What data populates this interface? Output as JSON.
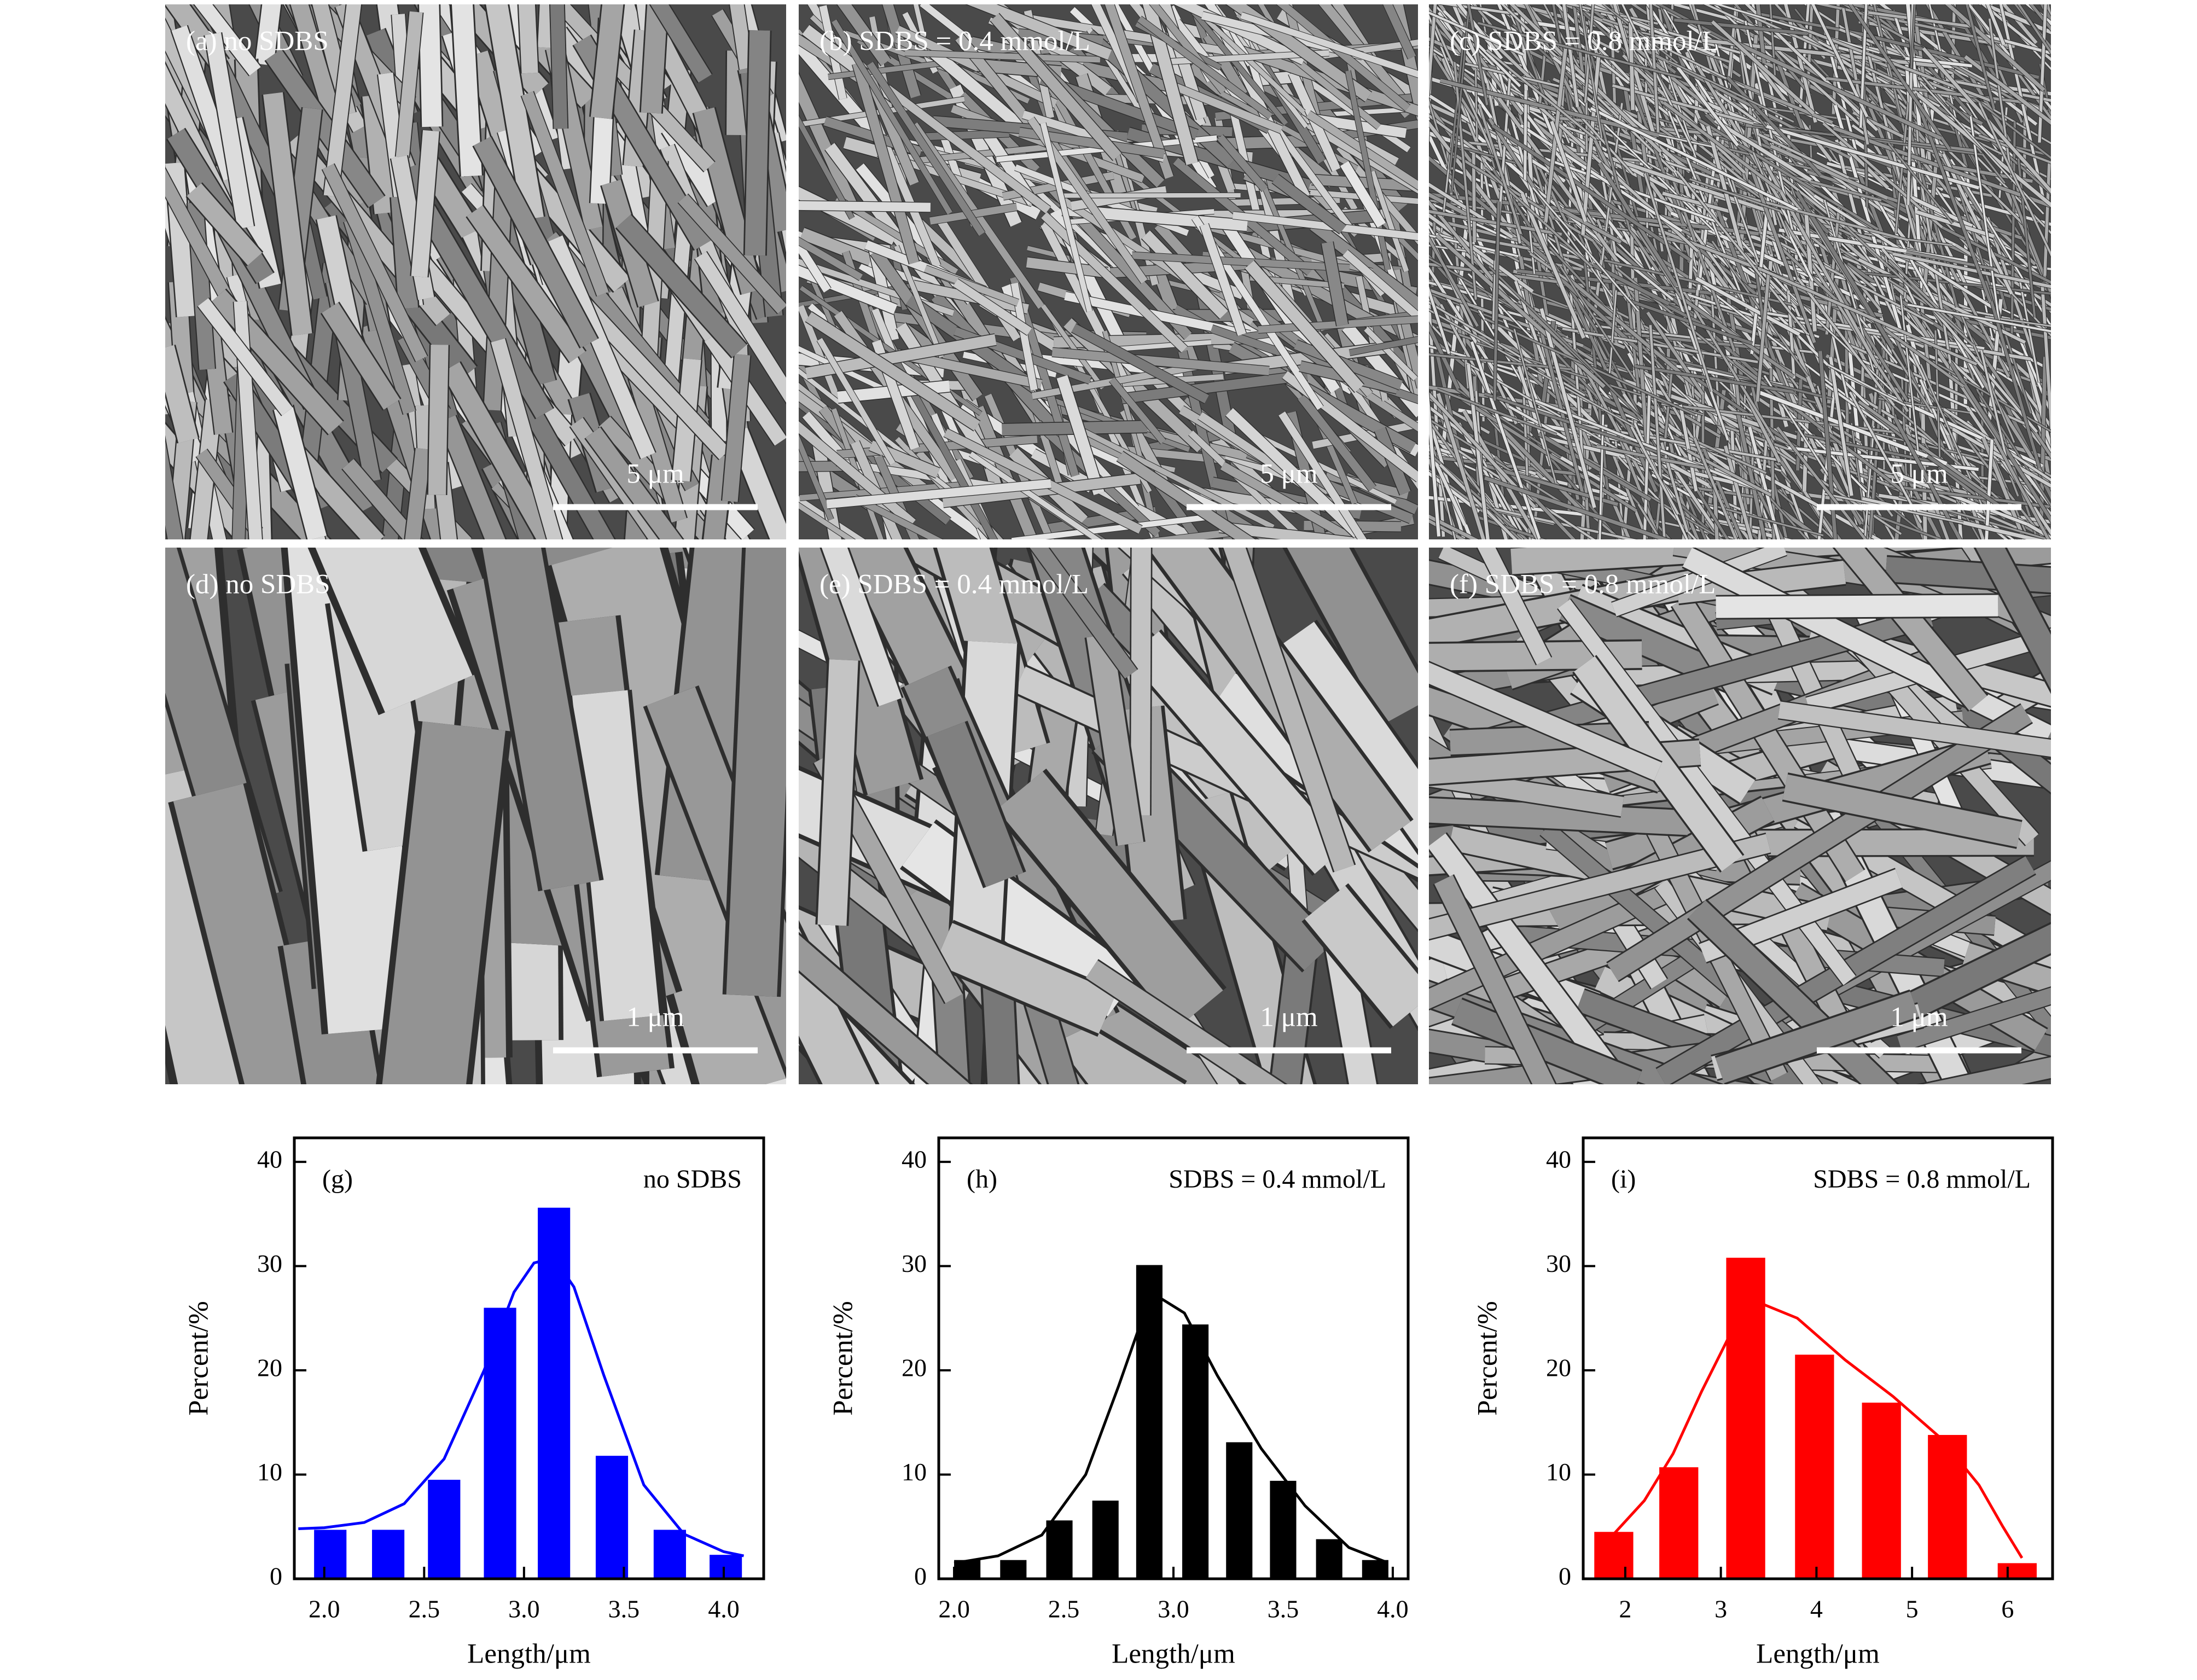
{
  "panels": [
    {
      "label": "(a)  no SDBS",
      "scale_bar": "5 μm"
    },
    {
      "label": "(b)  SDBS = 0.4 mmol/L",
      "scale_bar": "5 μm"
    },
    {
      "label": "(c)  SDBS = 0.8 mmol/L",
      "scale_bar": "5 μm"
    },
    {
      "label": "(d)  no SDBS",
      "scale_bar": "1 μm"
    },
    {
      "label": "(e)  SDBS = 0.4 mmol/L",
      "scale_bar": "1 μm"
    },
    {
      "label": "(f)  SDBS = 0.8 mmol/L",
      "scale_bar": "1 μm"
    }
  ],
  "chart_data": [
    {
      "type": "bar",
      "panel_label": "(g)",
      "annotation": "no SDBS",
      "color": "#0000ff",
      "xlabel": "Length/μm",
      "ylabel": "Percent/%",
      "x": [
        2.03,
        2.32,
        2.6,
        2.88,
        3.15,
        3.44,
        3.73,
        4.01
      ],
      "values": [
        4.7,
        4.7,
        9.5,
        26,
        35.6,
        11.8,
        4.7,
        2.3
      ],
      "line": {
        "x": [
          1.87,
          2.0,
          2.2,
          2.4,
          2.6,
          2.8,
          2.95,
          3.05,
          3.15,
          3.25,
          3.4,
          3.6,
          3.8,
          4.0,
          4.1
        ],
        "y": [
          4.8,
          4.9,
          5.4,
          7.2,
          11.5,
          20,
          27.5,
          30.3,
          30.8,
          28,
          19.5,
          9,
          4.3,
          2.6,
          2.2
        ]
      },
      "xlim": [
        1.85,
        4.2
      ],
      "ylim": [
        0,
        42.3
      ],
      "xticks": [
        {
          "value": 2,
          "label": "2.0"
        },
        {
          "value": 2.5,
          "label": "2.5"
        },
        {
          "value": 3,
          "label": "3.0"
        },
        {
          "value": 3.5,
          "label": "3.5"
        },
        {
          "value": 4,
          "label": "4.0"
        }
      ],
      "yticks": [
        0,
        10,
        20,
        30,
        40
      ]
    },
    {
      "type": "bar",
      "panel_label": "(h)",
      "annotation": "SDBS = 0.4 mmol/L",
      "color": "#000000",
      "xlabel": "Length/μm",
      "ylabel": "Percent/%",
      "x": [
        2.06,
        2.27,
        2.48,
        2.69,
        2.89,
        3.1,
        3.3,
        3.5,
        3.71,
        3.92
      ],
      "values": [
        1.8,
        1.8,
        5.6,
        7.5,
        30.1,
        24.4,
        13.1,
        9.4,
        3.8,
        1.8
      ],
      "line": {
        "x": [
          2.0,
          2.2,
          2.4,
          2.6,
          2.75,
          2.85,
          2.95,
          3.05,
          3.2,
          3.4,
          3.6,
          3.8,
          3.97
        ],
        "y": [
          1.5,
          2.2,
          4.2,
          10,
          18.5,
          24.5,
          26.8,
          25.5,
          19.5,
          12.5,
          7,
          3,
          1.6
        ]
      },
      "xlim": [
        1.93,
        4.07
      ],
      "ylim": [
        0,
        42.3
      ],
      "xticks": [
        {
          "value": 2,
          "label": "2.0"
        },
        {
          "value": 2.5,
          "label": "2.5"
        },
        {
          "value": 3,
          "label": "3.0"
        },
        {
          "value": 3.5,
          "label": "3.5"
        },
        {
          "value": 4,
          "label": "4.0"
        }
      ],
      "yticks": [
        0,
        10,
        20,
        30,
        40
      ]
    },
    {
      "type": "bar",
      "panel_label": "(i)",
      "annotation": "SDBS = 0.8 mmol/L",
      "color": "#ff0000",
      "xlabel": "Length/μm",
      "ylabel": "Percent/%",
      "x": [
        1.88,
        2.56,
        3.26,
        3.98,
        4.68,
        5.37,
        6.1
      ],
      "values": [
        4.5,
        10.7,
        30.8,
        21.5,
        16.9,
        13.8,
        1.5
      ],
      "line": {
        "x": [
          1.85,
          2.2,
          2.5,
          2.8,
          3.1,
          3.4,
          3.8,
          4.3,
          4.8,
          5.3,
          5.7,
          5.95,
          6.15
        ],
        "y": [
          4,
          7.5,
          12,
          18,
          23.5,
          26.5,
          25,
          21,
          17.5,
          13.5,
          9,
          5,
          2
        ]
      },
      "xlim": [
        1.56,
        6.47
      ],
      "ylim": [
        0,
        42.3
      ],
      "xticks": [
        2,
        3,
        4,
        5,
        6
      ],
      "yticks": [
        0,
        10,
        20,
        30,
        40
      ]
    }
  ]
}
